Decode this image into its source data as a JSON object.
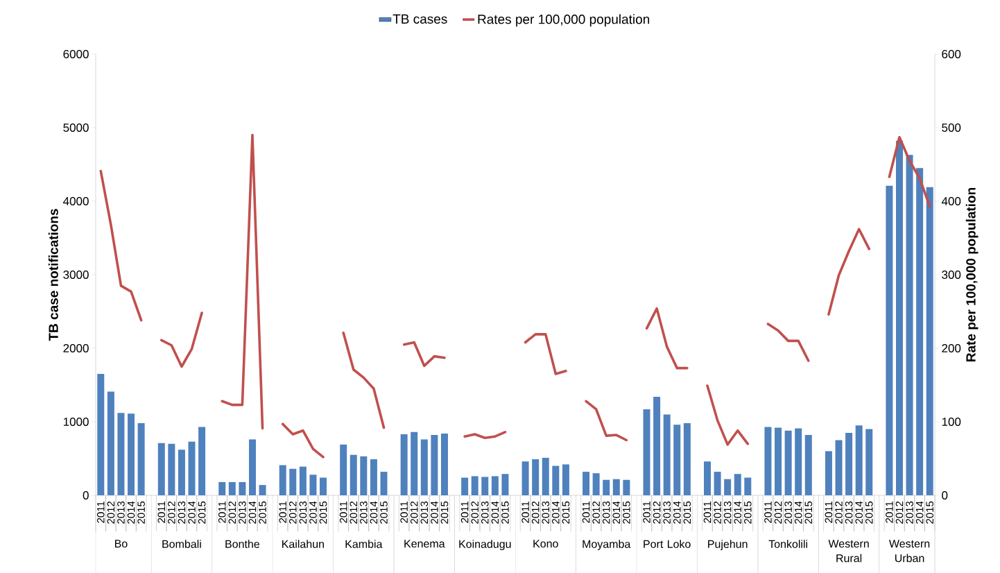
{
  "chart_data": {
    "type": "bar",
    "ylabel": "TB case notifications",
    "y2label": "Rate per 100,000 population",
    "categories": [
      "2011",
      "2012",
      "2013",
      "2014",
      "2015",
      null,
      "2011",
      "2012",
      "2013",
      "2014",
      "2015",
      null,
      "2011",
      "2012",
      "2013",
      "2014",
      "2015",
      null,
      "2011",
      "2012",
      "2013",
      "2014",
      "2015",
      null,
      "2011",
      "2012",
      "2013",
      "2014",
      "2015",
      null,
      "2011",
      "2012",
      "2013",
      "2014",
      "2015",
      null,
      "2011",
      "2012",
      "2013",
      "2014",
      "2015",
      null,
      "2011",
      "2012",
      "2013",
      "2014",
      "2015",
      null,
      "2011",
      "2012",
      "2013",
      "2014",
      "2015",
      null,
      "2011",
      "2012",
      "2013",
      "2014",
      "2015",
      null,
      "2011",
      "2012",
      "2013",
      "2014",
      "2015",
      null,
      "2011",
      "2012",
      "2013",
      "2014",
      "2015",
      null,
      "2011",
      "2012",
      "2013",
      "2014",
      "2015",
      null,
      "2011",
      "2012",
      "2013",
      "2014",
      "2015"
    ],
    "annotations": [
      "Bo",
      "Bombali",
      "Bonthe",
      "Kailahun",
      "Kambia",
      "Kenema",
      "Koinadugu",
      "Kono",
      "Moyamba",
      "Port Loko",
      "Pujehun",
      "Tonkolili",
      "Western Rural",
      "Western Urban"
    ],
    "series": [
      {
        "name": "TB cases",
        "color": "#4f81bd",
        "values": [
          1650,
          1410,
          1120,
          1110,
          980,
          null,
          710,
          700,
          620,
          730,
          930,
          null,
          180,
          180,
          180,
          760,
          140,
          null,
          410,
          360,
          390,
          280,
          240,
          null,
          690,
          550,
          530,
          490,
          320,
          null,
          830,
          860,
          760,
          820,
          840,
          null,
          240,
          260,
          250,
          260,
          290,
          null,
          460,
          490,
          510,
          400,
          420,
          null,
          320,
          300,
          210,
          220,
          210,
          null,
          1170,
          1340,
          1100,
          960,
          980,
          null,
          460,
          320,
          220,
          290,
          240,
          null,
          930,
          920,
          880,
          910,
          820,
          null,
          600,
          750,
          850,
          950,
          900,
          null,
          4210,
          4820,
          4630,
          4450,
          4190
        ]
      },
      {
        "name": "Rates per 100,000 population",
        "type": "line",
        "axis": "y2",
        "color": "#c0504d",
        "values": [
          441,
          368,
          285,
          277,
          238,
          null,
          211,
          204,
          175,
          199,
          248,
          null,
          128,
          123,
          123,
          490,
          91,
          null,
          97,
          83,
          88,
          63,
          52,
          null,
          221,
          171,
          160,
          145,
          92,
          null,
          205,
          208,
          176,
          189,
          187,
          null,
          80,
          83,
          78,
          80,
          86,
          null,
          208,
          219,
          219,
          165,
          169,
          null,
          128,
          117,
          81,
          82,
          75,
          null,
          227,
          254,
          202,
          173,
          173,
          null,
          149,
          102,
          69,
          88,
          70,
          null,
          233,
          224,
          210,
          210,
          183,
          null,
          246,
          299,
          332,
          362,
          335,
          null,
          433,
          487,
          455,
          431,
          393
        ]
      }
    ],
    "ylim": [
      0,
      6000
    ],
    "yticks": [
      0,
      1000,
      2000,
      3000,
      4000,
      5000,
      6000
    ],
    "y2lim": [
      0,
      600
    ],
    "y2ticks": [
      0,
      100,
      200,
      300,
      400,
      500,
      600
    ],
    "legend": "top"
  }
}
